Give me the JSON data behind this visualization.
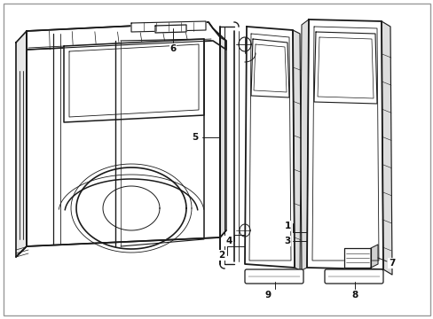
{
  "bg_color": "#ffffff",
  "line_color": "#1a1a1a",
  "label_color": "#111111",
  "figsize": [
    4.89,
    3.6
  ],
  "dpi": 100
}
